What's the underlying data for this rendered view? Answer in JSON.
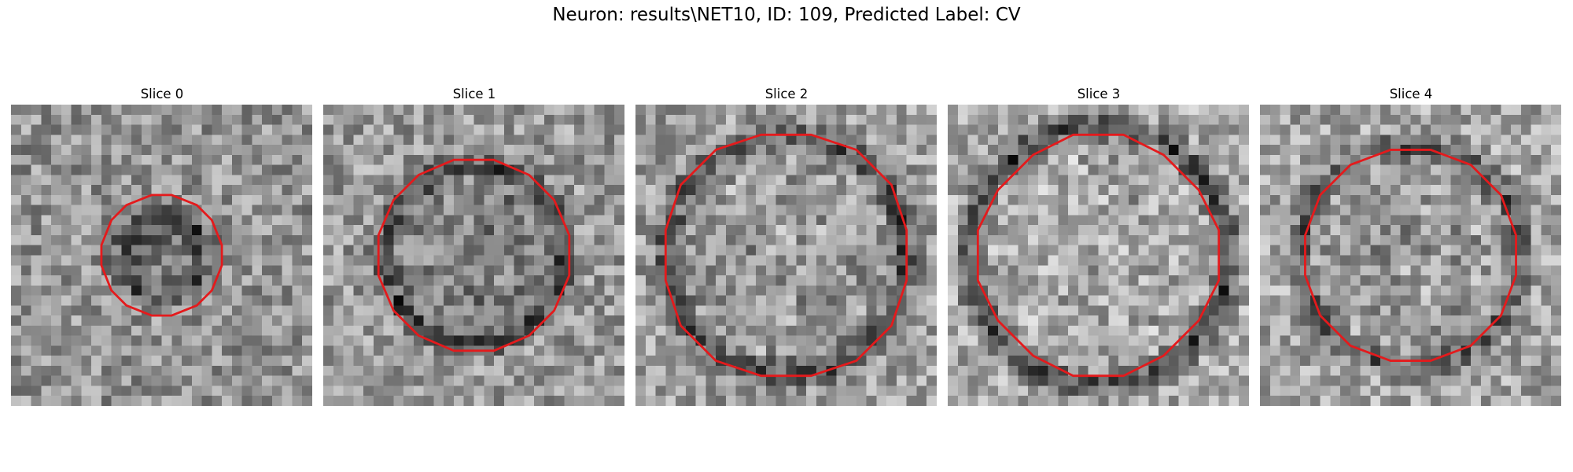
{
  "figure": {
    "title": "Neuron: results\\NET10, ID: 109, Predicted Label: CV",
    "contour_color": "#e41a1c",
    "colormap": "gray",
    "grid_size": 30
  },
  "panels": [
    {
      "title": "Slice 0",
      "seed": 11,
      "base": 0.58,
      "ring_r": 0.3,
      "inner_dark": 0.18,
      "ring_dark": 0.16,
      "contour_r": 0.41
    },
    {
      "title": "Slice 1",
      "seed": 23,
      "base": 0.6,
      "ring_r": 0.6,
      "inner_dark": 0.08,
      "ring_dark": 0.3,
      "contour_r": 0.64
    },
    {
      "title": "Slice 2",
      "seed": 37,
      "base": 0.62,
      "ring_r": 0.8,
      "inner_dark": 0.02,
      "ring_dark": 0.34,
      "contour_r": 0.83
    },
    {
      "title": "Slice 3",
      "seed": 51,
      "base": 0.66,
      "ring_r": 0.86,
      "inner_dark": 0.0,
      "ring_dark": 0.42,
      "contour_r": 0.8
    },
    {
      "title": "Slice 4",
      "seed": 67,
      "base": 0.65,
      "ring_r": 0.74,
      "inner_dark": 0.04,
      "ring_dark": 0.3,
      "contour_r": 0.73
    }
  ]
}
